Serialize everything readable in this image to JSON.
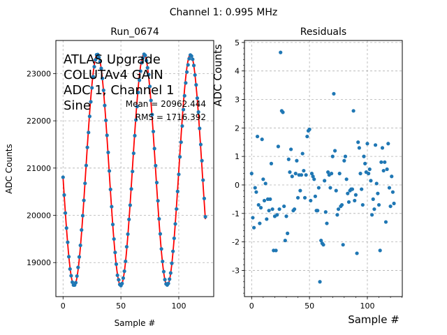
{
  "suptitle": "Channel 1: 0.995 MHz",
  "colors": {
    "points": "#1f77b4",
    "fit": "#ff0000",
    "grid": "#b0b0b0"
  },
  "chart_data": [
    {
      "type": "line",
      "title": "Run_0674",
      "xlabel": "Sample #",
      "ylabel": "ADC Counts",
      "xlim": [
        -6.2,
        130.2
      ],
      "ylim": [
        18280,
        23700
      ],
      "xticks": [
        0,
        50,
        100
      ],
      "yticks": [
        19000,
        20000,
        21000,
        22000,
        23000
      ],
      "grid": true,
      "annotation": [
        "ATLAS Upgrade",
        "COLUTAv4 GAIN",
        "ADC 1, Channel 1",
        "Sine"
      ],
      "stats": [
        "Mean = 20962.444",
        "RMS = 1716.392"
      ],
      "fit": {
        "mean": 20962.444,
        "amplitude": 2445,
        "period": 40.2,
        "start_value": 20800,
        "descending": true
      },
      "series": [
        {
          "x": [
            0,
            1,
            2,
            3,
            4,
            5,
            6,
            7,
            8,
            9,
            10,
            11,
            12,
            13,
            14,
            15,
            16,
            17,
            18,
            19,
            20,
            21,
            22,
            23,
            24,
            25,
            26,
            27,
            28,
            29,
            30,
            31,
            32,
            33,
            34,
            35,
            36,
            37,
            38,
            39,
            40,
            41,
            42,
            43,
            44,
            45,
            46,
            47,
            48,
            49,
            50,
            51,
            52,
            53,
            54,
            55,
            56,
            57,
            58,
            59,
            60,
            61,
            62,
            63,
            64,
            65,
            66,
            67,
            68,
            69,
            70,
            71,
            72,
            73,
            74,
            75,
            76,
            77,
            78,
            79,
            80,
            81,
            82,
            83,
            84,
            85,
            86,
            87,
            88,
            89,
            90,
            91,
            92,
            93,
            94,
            95,
            96,
            97,
            98,
            99,
            100,
            101,
            102,
            103,
            104,
            105,
            106,
            107,
            108,
            109,
            110,
            111,
            112,
            113,
            114,
            115,
            116,
            117,
            118,
            119,
            120,
            121,
            122,
            123
          ],
          "values": [
            20806,
            20431,
            20049,
            19731,
            19430,
            19125,
            18864,
            18722,
            18586,
            18525,
            18525,
            18575,
            18715,
            18898,
            19120,
            19365,
            19690,
            19993,
            20316,
            20677,
            21055,
            21438,
            21753,
            22094,
            22402,
            22698,
            22934,
            23144,
            23291,
            23397,
            23404,
            23343,
            23253,
            23110,
            22897,
            22646,
            22325,
            22010,
            21693,
            21331,
            20939,
            20549,
            20184,
            19807,
            19499,
            19215,
            18967,
            18731,
            18637,
            18538,
            18513,
            18557,
            18672,
            18817,
            19027,
            19335,
            19603,
            19914,
            20215,
            20558,
            20928,
            21313,
            21686,
            22017,
            22302,
            22601,
            22860,
            23050,
            23229,
            23331,
            23409,
            23385,
            23274,
            23122,
            22979,
            22728,
            22431,
            22131,
            21774,
            21413,
            21051,
            20693,
            20308,
            19925,
            19607,
            19289,
            19025,
            18809,
            18640,
            18549,
            18526,
            18559,
            18649,
            18780,
            18985,
            19239,
            19514,
            19819,
            20134,
            20506,
            20867,
            21237,
            21548,
            21890,
            22238,
            22530,
            22802,
            23033,
            23184,
            23314,
            23393,
            23370,
            23302,
            23172,
            22970,
            22760,
            22480,
            22186,
            21839,
            21499,
            21156,
            20745,
            20357,
            19970
          ]
        }
      ]
    },
    {
      "type": "scatter",
      "title": "Residuals",
      "xlabel": "Sample #",
      "ylabel": "ADC Counts",
      "xlim": [
        -6.2,
        130.2
      ],
      "ylim": [
        -3.92,
        5.07
      ],
      "xticks": [
        0,
        50,
        100
      ],
      "yticks": [
        -3,
        -2,
        -1,
        0,
        1,
        2,
        3,
        4,
        5
      ],
      "grid": true,
      "series": [
        {
          "x": [
            0,
            1,
            2,
            3,
            4,
            5,
            6,
            7,
            8,
            9,
            10,
            11,
            12,
            13,
            14,
            15,
            16,
            17,
            18,
            19,
            20,
            21,
            22,
            23,
            24,
            25,
            26,
            27,
            28,
            29,
            30,
            31,
            32,
            33,
            34,
            35,
            36,
            37,
            38,
            39,
            40,
            41,
            42,
            43,
            44,
            45,
            46,
            47,
            48,
            49,
            50,
            51,
            52,
            53,
            54,
            55,
            56,
            57,
            58,
            59,
            60,
            61,
            62,
            63,
            64,
            65,
            66,
            67,
            68,
            69,
            70,
            71,
            72,
            73,
            74,
            75,
            76,
            77,
            78,
            79,
            80,
            81,
            82,
            83,
            84,
            85,
            86,
            87,
            88,
            89,
            90,
            91,
            92,
            93,
            94,
            95,
            96,
            97,
            98,
            99,
            100,
            101,
            102,
            103,
            104,
            105,
            106,
            107,
            108,
            109,
            110,
            111,
            112,
            113,
            114,
            115,
            116,
            117,
            118,
            119,
            120,
            121,
            122,
            123
          ],
          "values": [
            0.4,
            -1.15,
            -1.5,
            -0.1,
            -0.25,
            1.7,
            -0.7,
            -1.35,
            -0.8,
            1.6,
            0.2,
            -0.55,
            0.05,
            -1.2,
            -0.5,
            -0.9,
            -0.5,
            0.75,
            -0.85,
            -2.3,
            -1.1,
            -2.3,
            -1.05,
            1.35,
            -0.85,
            4.65,
            2.6,
            2.55,
            -0.75,
            -1.95,
            -1.1,
            -1.7,
            0.9,
            0.45,
            1.25,
            0.3,
            -0.9,
            -0.85,
            0.4,
            0.85,
            -0.45,
            0.35,
            -0.2,
            0.35,
            1.1,
            0.5,
            -0.45,
            0.35,
            1.7,
            1.9,
            1.95,
            -0.55,
            0.4,
            0.3,
            0.2,
            -0.4,
            -0.9,
            -0.9,
            -0.1,
            -3.4,
            -1.95,
            -2.05,
            -2.1,
            0.15,
            -0.95,
            -1.35,
            0.45,
            0.35,
            -0.1,
            0.4,
            1.0,
            3.2,
            1.2,
            -0.2,
            -1.05,
            -0.85,
            0.4,
            -0.75,
            -0.7,
            -2.1,
            0.85,
            1.0,
            0.2,
            -0.3,
            -0.6,
            -0.2,
            -0.15,
            -0.15,
            2.6,
            -0.55,
            -0.35,
            -2.4,
            1.5,
            1.3,
            0.4,
            -0.15,
            -0.7,
            1.0,
            0.75,
            0.45,
            1.45,
            0.4,
            0.55,
            0.15,
            -1.05,
            -0.5,
            -0.85,
            1.4,
            0.05,
            -0.3,
            -0.7,
            -2.3,
            0.8,
            1.3,
            0.5,
            0.8,
            -1.3,
            0.55,
            1.45,
            -0.1,
            -0.75,
            0.3,
            -0.25,
            -0.65
          ]
        }
      ]
    }
  ]
}
